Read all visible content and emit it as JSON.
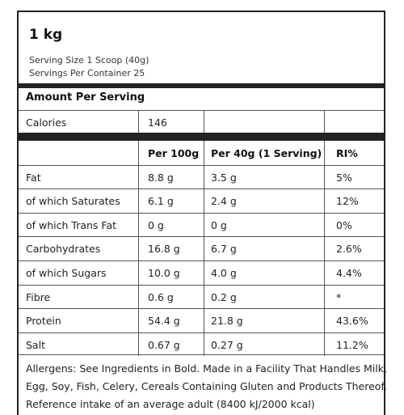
{
  "pack_size": "1 kg",
  "serving_size": "Serving Size 1 Scoop (40g)",
  "servings_per_container": "Servings Per Container 25",
  "amount_per_serving": "Amount Per Serving",
  "calories": {
    "label": "Calories",
    "value": "146"
  },
  "columns": {
    "per100": "Per 100g",
    "per40": "Per 40g (1 Serving)",
    "ri": "RI%"
  },
  "rows": [
    {
      "name": "Fat",
      "per100": "8.8 g",
      "per40": "3.5 g",
      "ri": "5%"
    },
    {
      "name": "of which Saturates",
      "per100": "6.1 g",
      "per40": "2.4 g",
      "ri": "12%"
    },
    {
      "name": "of which Trans Fat",
      "per100": "0 g",
      "per40": "0 g",
      "ri": "0%"
    },
    {
      "name": "Carbohydrates",
      "per100": "16.8 g",
      "per40": "6.7 g",
      "ri": "2.6%"
    },
    {
      "name": "of which Sugars",
      "per100": "10.0 g",
      "per40": "4.0 g",
      "ri": "4.4%"
    },
    {
      "name": "Fibre",
      "per100": "0.6 g",
      "per40": "0.2 g",
      "ri": "*"
    },
    {
      "name": "Protein",
      "per100": "54.4 g",
      "per40": "21.8 g",
      "ri": "43.6%"
    },
    {
      "name": "Salt",
      "per100": "0.67 g",
      "per40": "0.27 g",
      "ri": "11.2%"
    }
  ],
  "allergens": [
    "Allergens: See Ingredients in Bold. Made in a Facility That Handles Milk,",
    "Egg, Soy, Fish, Celery, Cereals Containing Gluten and Products Thereof.",
    "Reference intake of an average adult (8400 kJ/2000 kcal)"
  ]
}
